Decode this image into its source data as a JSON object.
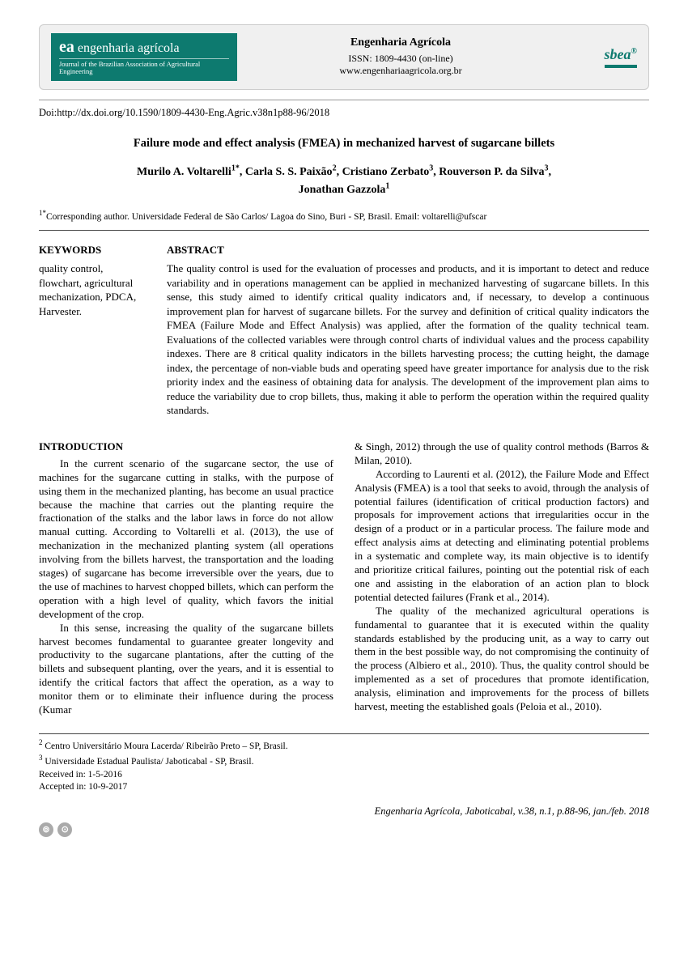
{
  "header": {
    "logo_ea_main": "engenharia agrícola",
    "logo_ea_sub": "Journal of the Brazilian Association of Agricultural Engineering",
    "journal_title": "Engenharia Agrícola",
    "issn": "ISSN: 1809-4430 (on-line)",
    "url": "www.engenhariaagricola.org.br",
    "logo_sbea": "sbea"
  },
  "doi": "Doi:http://dx.doi.org/10.1590/1809-4430-Eng.Agric.v38n1p88-96/2018",
  "title": "Failure mode and effect analysis (FMEA) in mechanized harvest of sugarcane billets",
  "authors_line1": "Murilo A. Voltarelli1*, Carla S. S. Paixão2, Cristiano Zerbato3, Rouverson P. da Silva3,",
  "authors_line2": "Jonathan Gazzola1",
  "corresponding": "1*Corresponding author. Universidade Federal de São Carlos/ Lagoa do Sino, Buri - SP, Brasil. Email: voltarelli@ufscar",
  "keywords_heading": "KEYWORDS",
  "keywords_text": "quality control, flowchart, agricultural mechanization, PDCA, Harvester.",
  "abstract_heading": "ABSTRACT",
  "abstract_text": "The quality control is used for the evaluation of processes and products, and it is important to detect and reduce variability and in operations management can be applied in mechanized harvesting of sugarcane billets. In this sense, this study aimed to identify critical quality indicators and, if necessary, to develop a continuous improvement plan for harvest of sugarcane billets. For the survey and definition of critical quality indicators the FMEA (Failure Mode and Effect Analysis) was applied, after the formation of the quality technical team. Evaluations of the collected variables were through control charts of individual values and the process capability indexes. There are 8 critical quality indicators in the billets harvesting process; the cutting height, the damage index, the percentage of non-viable buds and operating speed have greater importance for analysis due to the risk priority index and the easiness of obtaining data for analysis. The development of the improvement plan aims to reduce the variability due to crop billets, thus, making it able to perform the operation within the required quality standards.",
  "intro_heading": "INTRODUCTION",
  "intro_p1": "In the current scenario of the sugarcane sector, the use of machines for the sugarcane cutting in stalks, with the purpose of using them in the mechanized planting, has become an usual practice because the machine that carries out the planting require the fractionation of the stalks and the labor laws in force do not allow manual cutting. According to Voltarelli et al. (2013), the use of mechanization in the mechanized planting system (all operations involving from the billets harvest, the transportation and the loading stages) of sugarcane has become irreversible over the years, due to the use of machines to harvest chopped billets, which can perform the operation with a high level of quality, which favors the initial development of the crop.",
  "intro_p2": "In this sense, increasing the quality of the sugarcane billets harvest becomes fundamental to guarantee greater longevity and productivity to the sugarcane plantations, after the cutting of the billets and subsequent planting, over the years, and it is essential to identify the critical factors that affect the operation, as a way to monitor them or to eliminate their influence during the process (Kumar",
  "intro_p3": "& Singh, 2012) through the use of quality control methods (Barros & Milan, 2010).",
  "intro_p4": "According to Laurenti et al. (2012), the Failure Mode and Effect Analysis (FMEA) is a tool that seeks to avoid, through the analysis of potential failures (identification of critical production factors) and proposals for improvement actions that irregularities occur in the design of a product or in a particular process. The failure mode and effect analysis aims at detecting and eliminating potential problems in a systematic and complete way, its main objective is to identify and prioritize critical failures, pointing out the potential risk of each one and assisting in the elaboration of an action plan to block potential detected failures (Frank et al., 2014).",
  "intro_p5": "The quality of the mechanized agricultural operations is fundamental to guarantee that it is executed within the quality standards established by the producing unit, as a way to carry out them in the best possible way, do not compromising the continuity of the process (Albiero et al., 2010). Thus, the quality control should be implemented as a set of procedures that promote identification, analysis, elimination and improvements for the process of billets harvest, meeting the established goals (Peloia et al., 2010).",
  "footnotes": {
    "a2": "2 Centro Universitário Moura Lacerda/ Ribeirão Preto – SP, Brasil.",
    "a3": "3 Universidade Estadual Paulista/ Jaboticabal - SP, Brasil.",
    "received": "Received in: 1-5-2016",
    "accepted": "Accepted in: 10-9-2017"
  },
  "footer_citation": "Engenharia Agrícola, Jaboticabal, v.38, n.1, p.88-96, jan./feb. 2018"
}
